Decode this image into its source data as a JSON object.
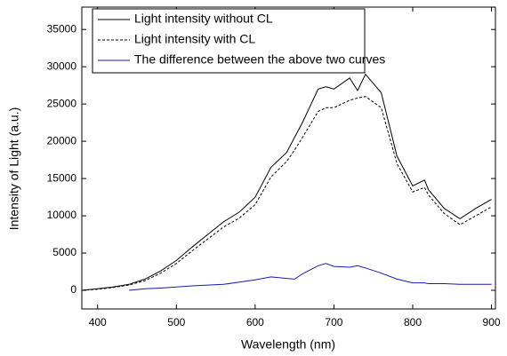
{
  "chart_data": {
    "type": "line",
    "xlabel": "Wavelength (nm)",
    "ylabel": "Intensity of Light (a.u.)",
    "x": [
      380,
      400,
      420,
      440,
      460,
      480,
      500,
      520,
      540,
      560,
      580,
      600,
      620,
      640,
      650,
      660,
      680,
      690,
      700,
      720,
      730,
      740,
      760,
      780,
      800,
      815,
      820,
      840,
      860,
      880,
      900
    ],
    "series": [
      {
        "name": "Light intensity without CL",
        "color": "#000000",
        "style": "solid",
        "values": [
          0,
          200,
          450,
          800,
          1500,
          2600,
          4000,
          5800,
          7500,
          9200,
          10500,
          12500,
          16500,
          18500,
          20500,
          22500,
          27000,
          27300,
          27000,
          28500,
          26800,
          29000,
          26500,
          18000,
          14000,
          14800,
          13500,
          11000,
          9600,
          11000,
          12200
        ]
      },
      {
        "name": "Light intensity with CL",
        "color": "#000000",
        "style": "dotted",
        "values": [
          0,
          150,
          400,
          700,
          1300,
          2300,
          3600,
          5300,
          6900,
          8500,
          9700,
          11500,
          15200,
          17300,
          18800,
          20500,
          24000,
          24500,
          24500,
          25500,
          25800,
          26000,
          24500,
          17000,
          13200,
          13800,
          12800,
          10300,
          8800,
          10000,
          11200
        ]
      },
      {
        "name": "The difference between the above two curves",
        "color": "#1a1aa8",
        "style": "solid",
        "values": [
          null,
          null,
          null,
          0,
          200,
          300,
          450,
          600,
          700,
          800,
          1100,
          1400,
          1800,
          1600,
          1500,
          2200,
          3300,
          3600,
          3200,
          3100,
          3300,
          3000,
          2300,
          1500,
          1000,
          1000,
          900,
          900,
          800,
          800,
          800
        ]
      }
    ],
    "xlim": [
      380,
      905
    ],
    "xticks": [
      400,
      500,
      600,
      700,
      800,
      900
    ],
    "ylim": [
      -2500,
      38000
    ],
    "yticks": [
      0,
      5000,
      10000,
      15000,
      20000,
      25000,
      30000,
      35000
    ],
    "legend": "upper-left"
  }
}
